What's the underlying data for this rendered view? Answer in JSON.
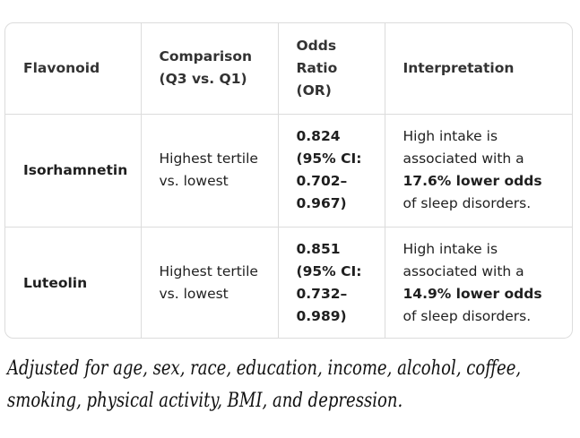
{
  "table": {
    "headers": [
      "Flavonoid",
      "Comparison (Q3 vs. Q1)",
      "Odds Ratio (OR)",
      "Interpretation"
    ],
    "rows": [
      {
        "flavonoid": "Isorhamnetin",
        "comparison": "Highest tertile vs. lowest",
        "odds_ratio": "0.824 (95% CI: 0.702–0.967)",
        "interp_pre": "High intake is associated with a ",
        "interp_bold": "17.6% lower odds",
        "interp_post": " of sleep disorders."
      },
      {
        "flavonoid": "Luteolin",
        "comparison": "Highest tertile vs. lowest",
        "odds_ratio": "0.851 (95% CI: 0.732–0.989)",
        "interp_pre": "High intake is associated with a ",
        "interp_bold": "14.9% lower odds",
        "interp_post": " of sleep disorders."
      }
    ]
  },
  "note": "Adjusted for age, sex, race, education, income, alcohol, coffee, smoking, physical activity, BMI, and depression."
}
